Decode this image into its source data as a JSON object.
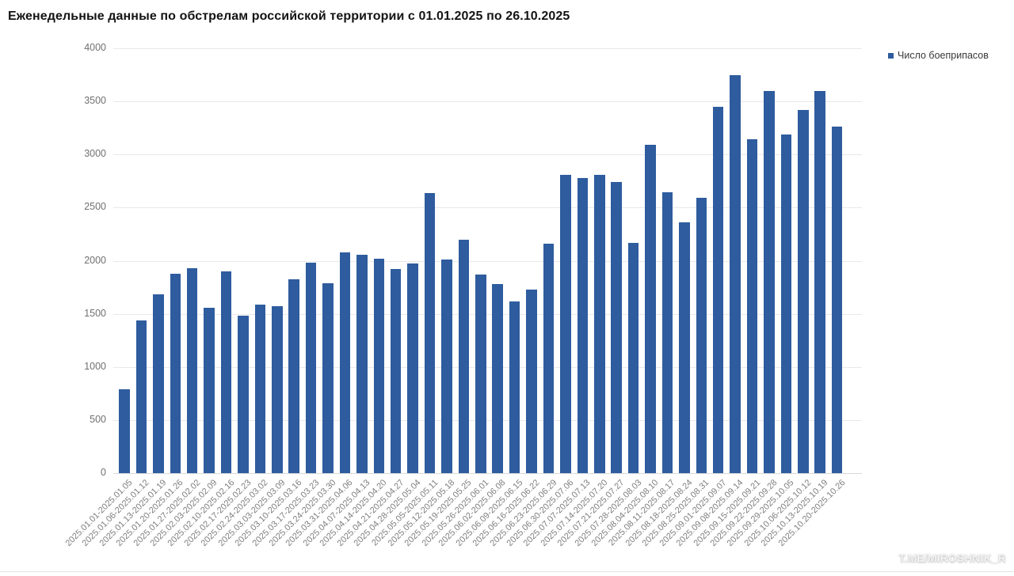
{
  "header": {
    "title": "Еженедельные данные по обстрелам российской территории с 01.01.2025 по 26.10.2025"
  },
  "legend": {
    "label": "Число боеприпасов",
    "marker_color": "#2e5c9e"
  },
  "watermark": {
    "text": "T.ME/MIROSHNIK_R"
  },
  "chart_data": {
    "type": "bar",
    "title": "Еженедельные данные по обстрелам российской территории с 01.01.2025 по 26.10.2025",
    "series_name": "Число боеприпасов",
    "xlabel": "",
    "ylabel": "",
    "ylim": [
      0,
      4000
    ],
    "yticks": [
      0,
      500,
      1000,
      1500,
      2000,
      2500,
      3000,
      3500,
      4000
    ],
    "grid": "horizontal",
    "legend_position": "top-right",
    "bar_color": "#2e5c9e",
    "categories": [
      "2025.01.01-2025.01.05",
      "2025.01.06-2025.01.12",
      "2025.01.13-2025.01.19",
      "2025.01.20-2025.01.26",
      "2025.01.27-2025.02.02",
      "2025.02.03-2025.02.09",
      "2025.02.10-2025.02.16",
      "2025.02.17-2025.02.23",
      "2025.02.24-2025.03.02",
      "2025.03.03-2025.03.09",
      "2025.03.10-2025.03.16",
      "2025.03.17-2025.03.23",
      "2025.03.24-2025.03.30",
      "2025.03.31-2025.04.06",
      "2025.04.07-2025.04.13",
      "2025.04.14-2025.04.20",
      "2025.04.21-2025.04.27",
      "2025.04.28-2025.05.04",
      "2025.05.05-2025.05.11",
      "2025.05.12-2025.05.18",
      "2025.05.19-2025.05.25",
      "2025.05.26-2025.06.01",
      "2025.06.02-2025.06.08",
      "2025.06.09-2025.06.15",
      "2025.06.16-2025.06.22",
      "2025.06.23-2025.06.29",
      "2025.06.30-2025.07.06",
      "2025.07.07-2025.07.13",
      "2025.07.14-2025.07.20",
      "2025.07.21-2025.07.27",
      "2025.07.28-2025.08.03",
      "2025.08.04-2025.08.10",
      "2025.08.11-2025.08.17",
      "2025.08.18-2025.08.24",
      "2025.08.25-2025.08.31",
      "2025.09.01-2025.09.07",
      "2025.09.08-2025.09.14",
      "2025.09.15-2025.09.21",
      "2025.09.22-2025.09.28",
      "2025.09.29-2025.10.05",
      "2025.10.06-2025.10.12",
      "2025.10.13-2025.10.19",
      "2025.10.20-2025.10.26"
    ],
    "values": [
      790,
      1440,
      1680,
      1880,
      1930,
      1555,
      1900,
      1480,
      1585,
      1570,
      1825,
      1980,
      1785,
      2075,
      2055,
      2020,
      1920,
      1975,
      2640,
      2010,
      2195,
      1870,
      1780,
      1620,
      1725,
      2160,
      2810,
      2780,
      2805,
      2740,
      2170,
      3090,
      2645,
      2360,
      2590,
      3450,
      3745,
      3145,
      3600,
      3185,
      3420,
      3600,
      3260
    ]
  }
}
